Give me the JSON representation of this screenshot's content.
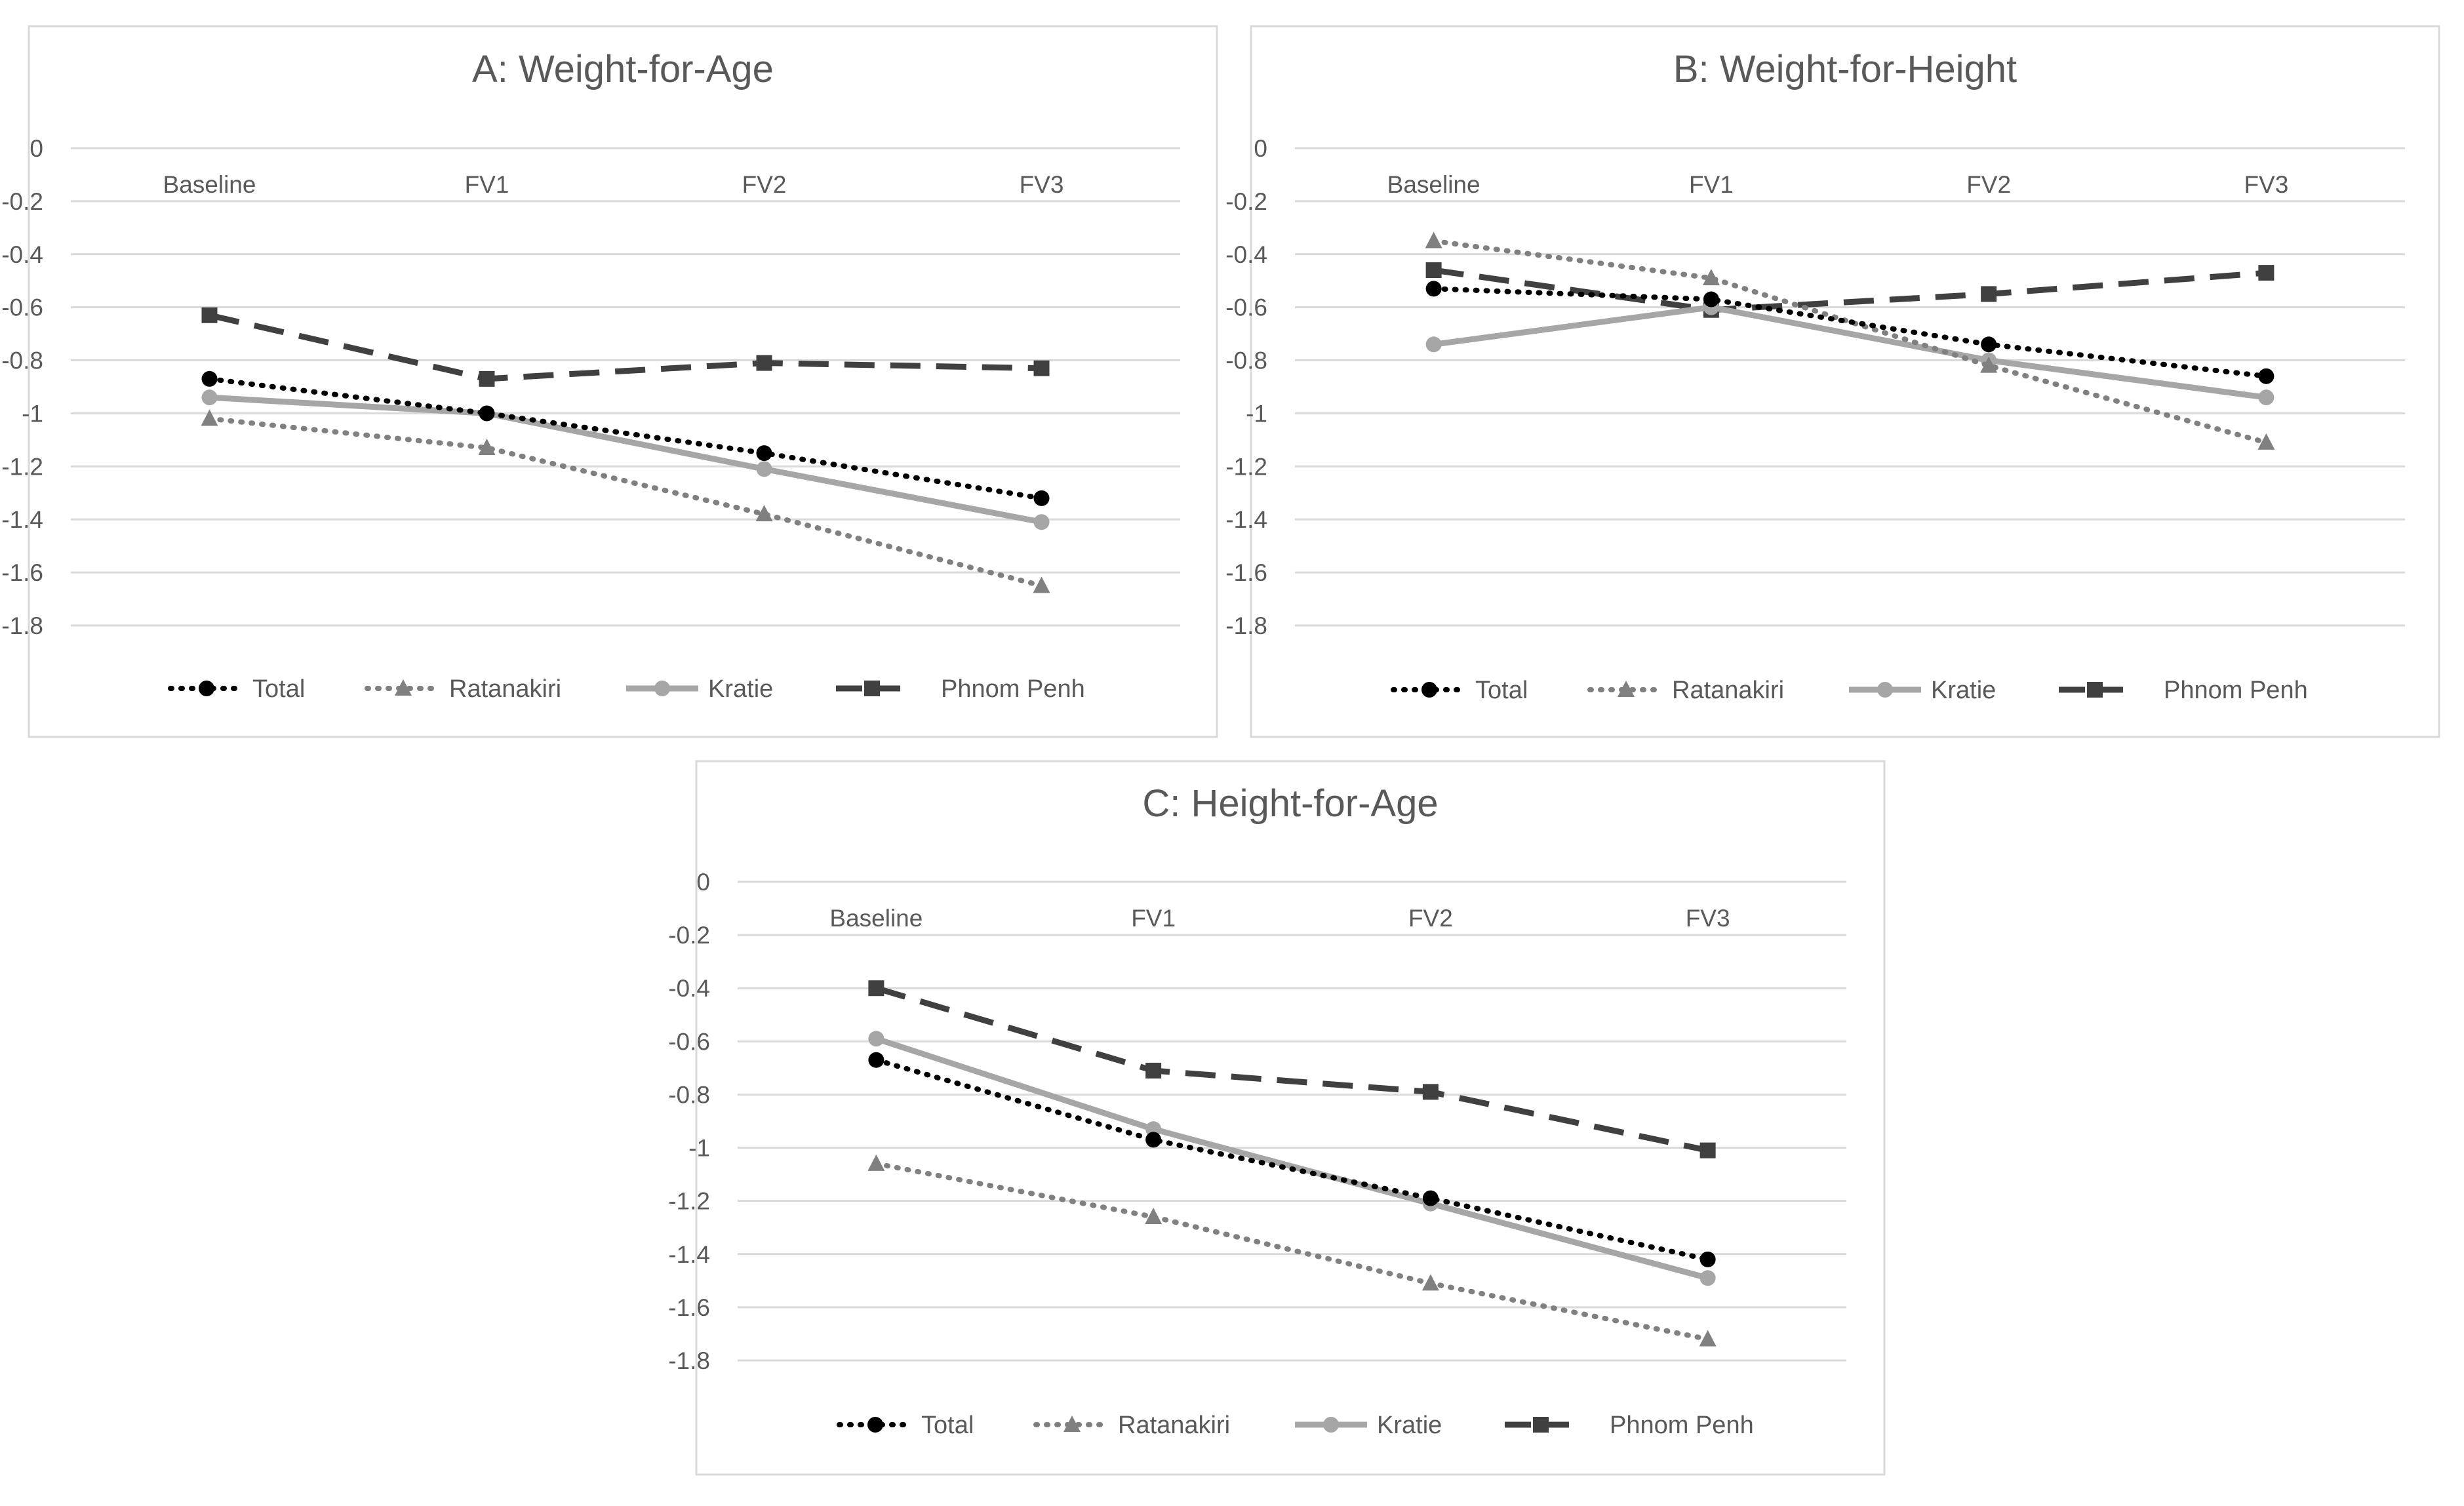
{
  "chart_data": [
    {
      "type": "line",
      "title": "A: Weight-for-Age",
      "categories": [
        "Baseline",
        "FV1",
        "FV2",
        "FV3"
      ],
      "ylim": [
        -1.8,
        0
      ],
      "yticks": [
        "0",
        "-0.2",
        "-0.4",
        "-0.6",
        "-0.8",
        "-1",
        "-1.2",
        "-1.4",
        "-1.6",
        "-1.8"
      ],
      "grid": true,
      "legend_position": "bottom",
      "series": [
        {
          "name": "Total",
          "values": [
            -0.87,
            -1.0,
            -1.15,
            -1.32
          ]
        },
        {
          "name": "Ratanakiri",
          "values": [
            -1.02,
            -1.13,
            -1.38,
            -1.65
          ]
        },
        {
          "name": "Kratie",
          "values": [
            -0.94,
            -1.0,
            -1.21,
            -1.41
          ]
        },
        {
          "name": "Phnom Penh",
          "values": [
            -0.63,
            -0.87,
            -0.81,
            -0.83
          ]
        }
      ]
    },
    {
      "type": "line",
      "title": "B: Weight-for-Height",
      "categories": [
        "Baseline",
        "FV1",
        "FV2",
        "FV3"
      ],
      "ylim": [
        -1.8,
        0
      ],
      "yticks": [
        "0",
        "-0.2",
        "-0.4",
        "-0.6",
        "-0.8",
        "-1",
        "-1.2",
        "-1.4",
        "-1.6",
        "-1.8"
      ],
      "grid": true,
      "legend_position": "bottom",
      "series": [
        {
          "name": "Total",
          "values": [
            -0.53,
            -0.57,
            -0.74,
            -0.86
          ]
        },
        {
          "name": "Ratanakiri",
          "values": [
            -0.35,
            -0.49,
            -0.82,
            -1.11
          ]
        },
        {
          "name": "Kratie",
          "values": [
            -0.74,
            -0.6,
            -0.8,
            -0.94
          ]
        },
        {
          "name": "Phnom Penh",
          "values": [
            -0.46,
            -0.61,
            -0.55,
            -0.47
          ]
        }
      ]
    },
    {
      "type": "line",
      "title": "C: Height-for-Age",
      "categories": [
        "Baseline",
        "FV1",
        "FV2",
        "FV3"
      ],
      "ylim": [
        -1.8,
        0
      ],
      "yticks": [
        "0",
        "-0.2",
        "-0.4",
        "-0.6",
        "-0.8",
        "-1",
        "-1.2",
        "-1.4",
        "-1.6",
        "-1.8"
      ],
      "grid": true,
      "legend_position": "bottom",
      "series": [
        {
          "name": "Total",
          "values": [
            -0.67,
            -0.97,
            -1.19,
            -1.42
          ]
        },
        {
          "name": "Ratanakiri",
          "values": [
            -1.06,
            -1.26,
            -1.51,
            -1.72
          ]
        },
        {
          "name": "Kratie",
          "values": [
            -0.59,
            -0.93,
            -1.21,
            -1.49
          ]
        },
        {
          "name": "Phnom Penh",
          "values": [
            -0.4,
            -0.71,
            -0.79,
            -1.01
          ]
        }
      ]
    }
  ],
  "series_styles": {
    "Total": {
      "color": "#000000",
      "dash": "dotted",
      "marker": "circle"
    },
    "Ratanakiri": {
      "color": "#808080",
      "dash": "dotted",
      "marker": "triangle"
    },
    "Kratie": {
      "color": "#a6a6a6",
      "dash": "solid",
      "marker": "circle"
    },
    "Phnom Penh": {
      "color": "#404040",
      "dash": "dashed",
      "marker": "square"
    }
  }
}
